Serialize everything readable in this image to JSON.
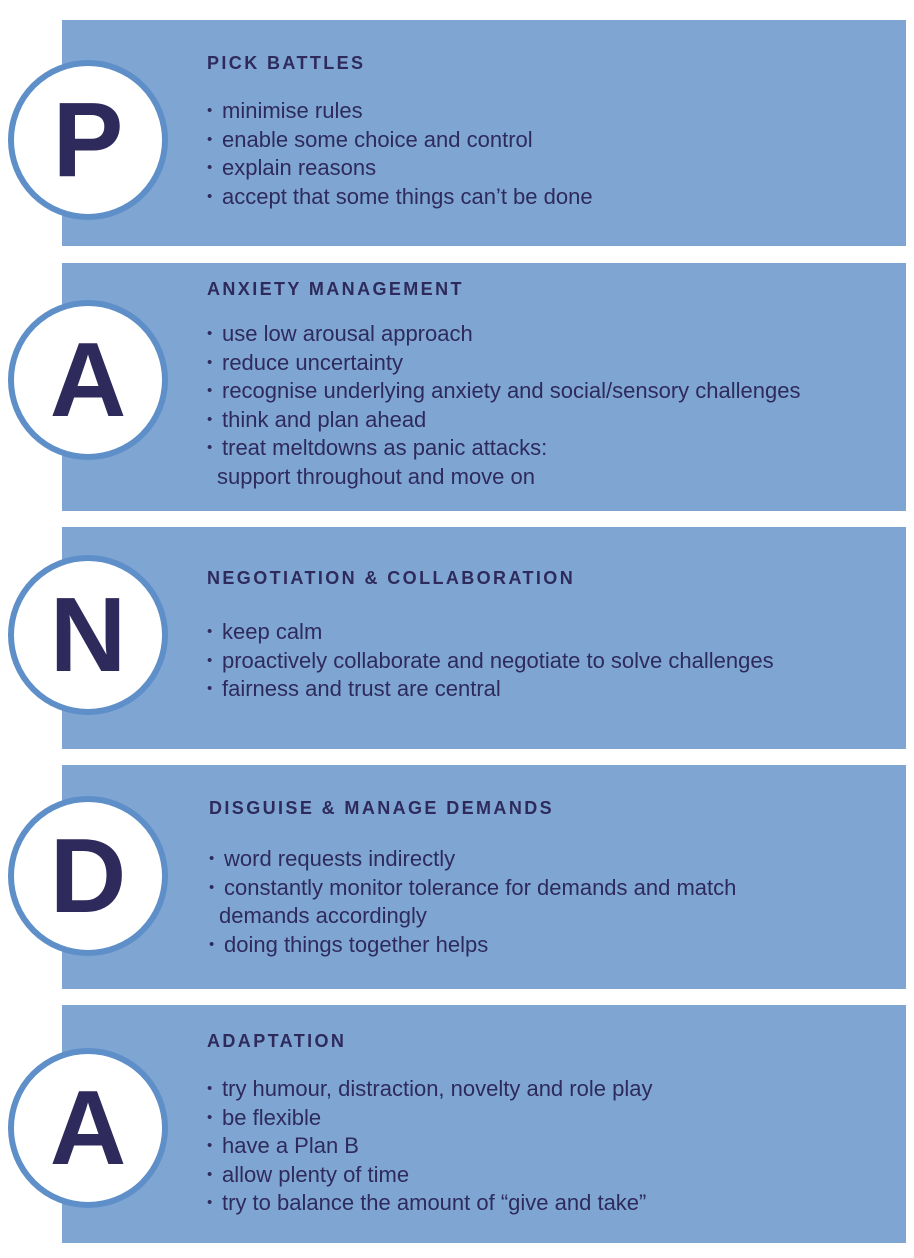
{
  "sections": [
    {
      "letter": "P",
      "title": "PICK BATTLES",
      "items": [
        "minimise rules",
        "enable some choice and control",
        "explain reasons",
        "accept that some things can’t be done"
      ]
    },
    {
      "letter": "A",
      "title": "ANXIETY MANAGEMENT",
      "items": [
        "use low arousal approach",
        "reduce uncertainty",
        "recognise underlying anxiety and social/sensory challenges",
        "think and plan ahead",
        "treat meltdowns as panic attacks:",
        "support throughout and move on"
      ]
    },
    {
      "letter": "N",
      "title": "NEGOTIATION & COLLABORATION",
      "items": [
        "keep calm",
        "proactively collaborate and negotiate to solve challenges",
        "fairness and trust are central"
      ]
    },
    {
      "letter": "D",
      "title": "DISGUISE & MANAGE DEMANDS",
      "items": [
        "word requests indirectly",
        "constantly monitor tolerance for demands and match",
        "demands accordingly",
        "doing things together helps"
      ]
    },
    {
      "letter": "A",
      "title": "ADAPTATION",
      "items": [
        "try humour, distraction, novelty and role play",
        "be flexible",
        "have a Plan B",
        "allow plenty of time",
        "try to balance the amount of “give and take”"
      ]
    }
  ]
}
